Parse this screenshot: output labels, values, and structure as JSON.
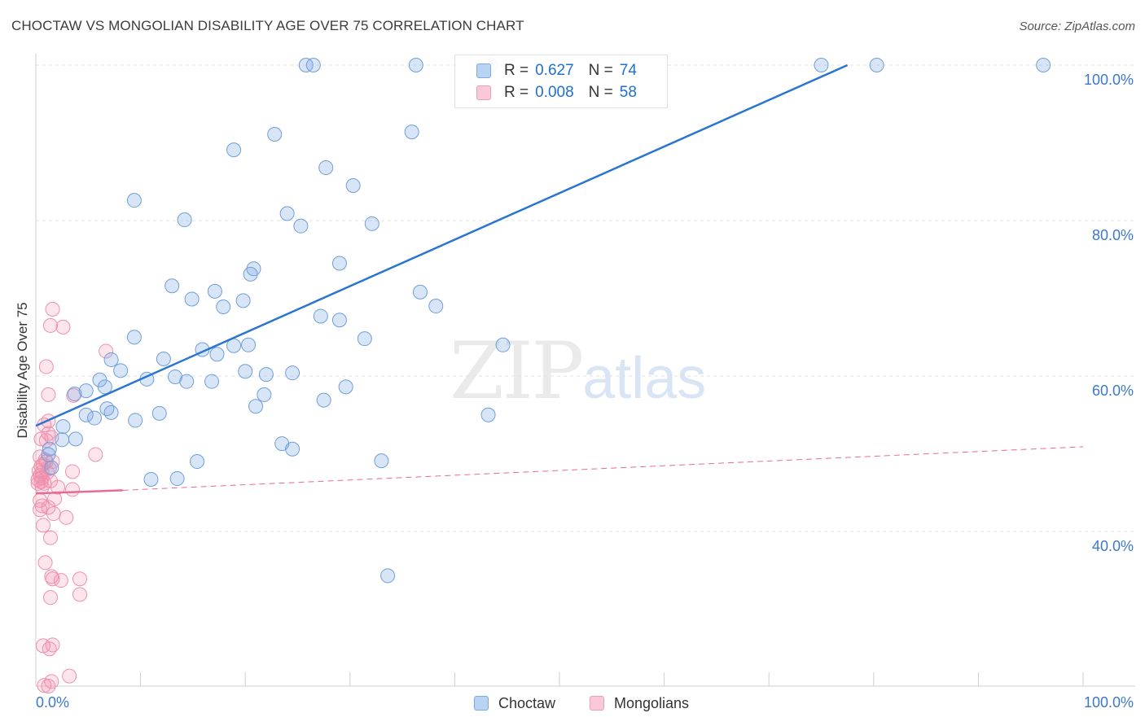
{
  "title": "CHOCTAW VS MONGOLIAN DISABILITY AGE OVER 75 CORRELATION CHART",
  "source": "Source: ZipAtlas.com",
  "watermark": {
    "zip": "ZIP",
    "atlas": "atlas"
  },
  "legend": {
    "rows": [
      {
        "r_label": "R =",
        "r_value": "0.627",
        "n_label": "N =",
        "n_value": "74",
        "color": "#a9c8ef"
      },
      {
        "r_label": "R =",
        "r_value": "0.008",
        "n_label": "N =",
        "n_value": "58",
        "color": "#f6b9cb"
      }
    ]
  },
  "bottom_legend": {
    "choctaw": "Choctaw",
    "mongolians": "Mongolians"
  },
  "colors": {
    "choctaw_fill": "rgba(125,170,230,0.30)",
    "choctaw_stroke": "#6f9fd8",
    "choctaw_line": "#2a75d0",
    "mongolian_fill": "rgba(240,140,170,0.22)",
    "mongolian_stroke": "#ef8fae",
    "mongolian_line": "#e86a95",
    "tick_label": "#3b78cc",
    "grid": "#e2e2e2"
  },
  "chart_data": {
    "type": "scatter",
    "title": "CHOCTAW VS MONGOLIAN DISABILITY AGE OVER 75 CORRELATION CHART",
    "xlabel": "",
    "ylabel": "Disability Age Over 75",
    "xlim": [
      0,
      100
    ],
    "ylim": [
      19,
      101
    ],
    "x_tick_labels": [
      "0.0%",
      "100.0%"
    ],
    "y_tick_labels": [
      "100.0%",
      "80.0%",
      "60.0%",
      "40.0%"
    ],
    "y_ticks": [
      100,
      80,
      60,
      40
    ],
    "grid": true,
    "legend_position": "top-center",
    "series": [
      {
        "name": "Choctaw",
        "r": 0.627,
        "n": 74,
        "trend": {
          "x": [
            0,
            77.5
          ],
          "y": [
            53.6,
            100
          ],
          "style": "solid"
        },
        "points": [
          [
            25.8,
            100
          ],
          [
            26.5,
            100
          ],
          [
            36.3,
            100
          ],
          [
            43.4,
            100
          ],
          [
            75,
            100
          ],
          [
            80.3,
            100
          ],
          [
            96.2,
            100
          ],
          [
            22.8,
            91.1
          ],
          [
            35.9,
            91.4
          ],
          [
            18.9,
            89.1
          ],
          [
            27.7,
            86.8
          ],
          [
            30.3,
            84.5
          ],
          [
            9.4,
            82.6
          ],
          [
            24.0,
            80.9
          ],
          [
            32.1,
            79.6
          ],
          [
            14.2,
            80.1
          ],
          [
            25.3,
            79.3
          ],
          [
            29.0,
            74.5
          ],
          [
            20.8,
            73.8
          ],
          [
            13.0,
            71.6
          ],
          [
            20.5,
            73.1
          ],
          [
            17.1,
            70.9
          ],
          [
            14.9,
            69.9
          ],
          [
            17.9,
            68.9
          ],
          [
            19.8,
            69.7
          ],
          [
            36.7,
            70.8
          ],
          [
            38.2,
            69.0
          ],
          [
            27.2,
            67.7
          ],
          [
            29.0,
            67.2
          ],
          [
            9.4,
            65.0
          ],
          [
            17.3,
            62.8
          ],
          [
            15.9,
            63.4
          ],
          [
            18.9,
            63.9
          ],
          [
            20.3,
            64.0
          ],
          [
            44.6,
            64.0
          ],
          [
            12.2,
            62.2
          ],
          [
            7.2,
            62.1
          ],
          [
            8.1,
            60.7
          ],
          [
            10.6,
            59.6
          ],
          [
            13.3,
            59.9
          ],
          [
            6.1,
            59.5
          ],
          [
            4.8,
            58.1
          ],
          [
            20.0,
            60.6
          ],
          [
            22.0,
            60.2
          ],
          [
            24.5,
            60.4
          ],
          [
            14.4,
            59.3
          ],
          [
            6.6,
            58.6
          ],
          [
            16.8,
            59.3
          ],
          [
            3.7,
            57.7
          ],
          [
            29.6,
            58.6
          ],
          [
            27.5,
            56.9
          ],
          [
            21.0,
            56.1
          ],
          [
            6.8,
            55.8
          ],
          [
            7.2,
            55.3
          ],
          [
            4.8,
            55.0
          ],
          [
            9.5,
            54.3
          ],
          [
            11.8,
            55.2
          ],
          [
            5.6,
            54.6
          ],
          [
            43.2,
            55.0
          ],
          [
            2.6,
            53.5
          ],
          [
            3.8,
            51.9
          ],
          [
            2.5,
            51.8
          ],
          [
            23.5,
            51.3
          ],
          [
            1.3,
            50.6
          ],
          [
            24.5,
            50.6
          ],
          [
            1.2,
            49.9
          ],
          [
            33.0,
            49.1
          ],
          [
            1.5,
            48.2
          ],
          [
            11.0,
            46.7
          ],
          [
            13.5,
            46.8
          ],
          [
            33.6,
            34.3
          ],
          [
            21.8,
            57.6
          ],
          [
            31.4,
            64.8
          ],
          [
            15.4,
            49.0
          ]
        ]
      },
      {
        "name": "Mongolians",
        "r": 0.008,
        "n": 58,
        "trend": {
          "x": [
            0,
            8.3
          ],
          "y": [
            44.9,
            45.3
          ],
          "dashed_to": [
            100,
            50.9
          ],
          "style": "solid-then-dashed"
        },
        "points": [
          [
            1.6,
            68.6
          ],
          [
            1.4,
            66.5
          ],
          [
            2.6,
            66.3
          ],
          [
            6.7,
            63.2
          ],
          [
            1.0,
            61.2
          ],
          [
            1.2,
            57.6
          ],
          [
            3.6,
            57.5
          ],
          [
            1.2,
            54.2
          ],
          [
            0.8,
            53.7
          ],
          [
            1.2,
            52.6
          ],
          [
            1.5,
            52.1
          ],
          [
            0.5,
            51.9
          ],
          [
            1.0,
            51.7
          ],
          [
            5.7,
            49.9
          ],
          [
            0.4,
            49.6
          ],
          [
            0.9,
            49.2
          ],
          [
            1.0,
            49.0
          ],
          [
            1.6,
            49.0
          ],
          [
            0.7,
            48.6
          ],
          [
            0.5,
            48.4
          ],
          [
            1.3,
            48.1
          ],
          [
            0.3,
            47.8
          ],
          [
            0.6,
            47.6
          ],
          [
            1.1,
            47.6
          ],
          [
            3.5,
            47.7
          ],
          [
            0.4,
            47.2
          ],
          [
            0.6,
            46.9
          ],
          [
            0.2,
            46.7
          ],
          [
            1.4,
            46.5
          ],
          [
            0.5,
            46.4
          ],
          [
            0.2,
            46.2
          ],
          [
            0.8,
            46.2
          ],
          [
            0.6,
            45.7
          ],
          [
            2.1,
            45.7
          ],
          [
            3.5,
            45.4
          ],
          [
            0.4,
            44.0
          ],
          [
            1.8,
            44.2
          ],
          [
            0.6,
            43.3
          ],
          [
            1.2,
            43.1
          ],
          [
            0.4,
            42.8
          ],
          [
            1.7,
            42.3
          ],
          [
            2.9,
            41.8
          ],
          [
            0.7,
            40.8
          ],
          [
            1.4,
            39.2
          ],
          [
            0.9,
            36.0
          ],
          [
            1.5,
            34.2
          ],
          [
            1.6,
            33.9
          ],
          [
            4.2,
            33.9
          ],
          [
            2.4,
            33.7
          ],
          [
            4.2,
            31.9
          ],
          [
            1.4,
            31.5
          ],
          [
            0.7,
            25.3
          ],
          [
            1.6,
            25.4
          ],
          [
            1.3,
            24.9
          ],
          [
            1.5,
            20.7
          ],
          [
            3.2,
            21.4
          ],
          [
            1.2,
            20.1
          ],
          [
            0.8,
            20.2
          ]
        ]
      }
    ]
  }
}
